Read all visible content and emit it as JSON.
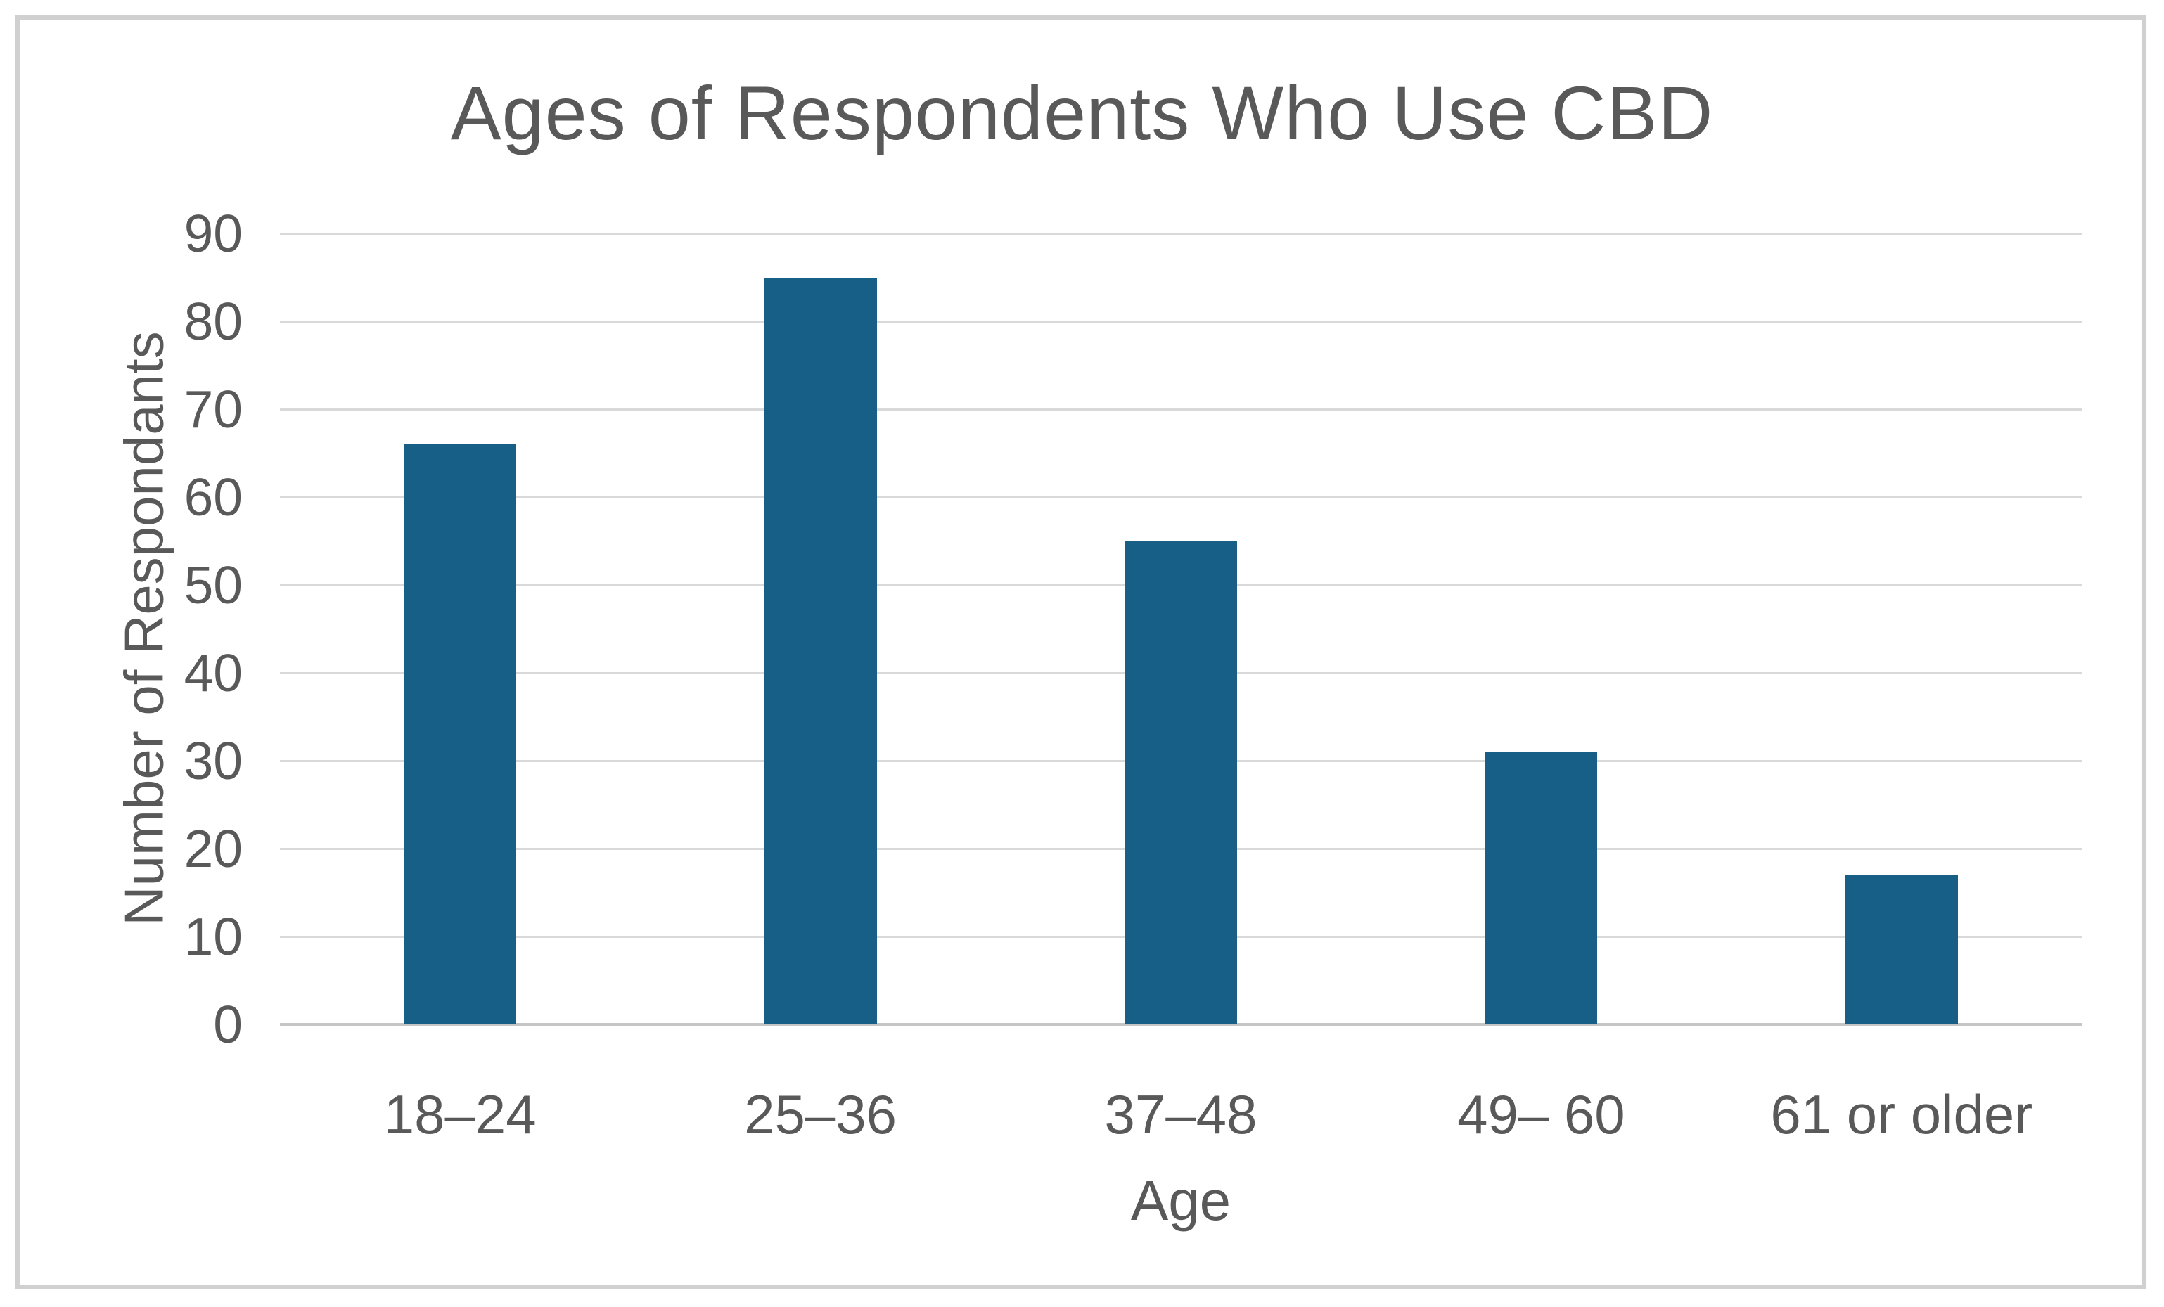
{
  "chart_data": {
    "type": "bar",
    "title": "Ages of Respondents Who Use CBD",
    "categories": [
      "18–24",
      "25–36",
      "37–48",
      "49– 60",
      "61 or older"
    ],
    "values": [
      66,
      85,
      55,
      31,
      17
    ],
    "xlabel": "Age",
    "ylabel": "Number of Respondants",
    "ylim": [
      0,
      90
    ],
    "ytick_step": 10,
    "yticks": [
      0,
      10,
      20,
      30,
      40,
      50,
      60,
      70,
      80,
      90
    ],
    "grid": "horizontal",
    "legend": "none",
    "colors": {
      "bar": "#175F87",
      "gridline": "#D9D9D9",
      "axis_line": "#C6C6C6",
      "text": "#595959",
      "frame_border": "#D0D0D0",
      "background": "#FFFFFF"
    }
  }
}
